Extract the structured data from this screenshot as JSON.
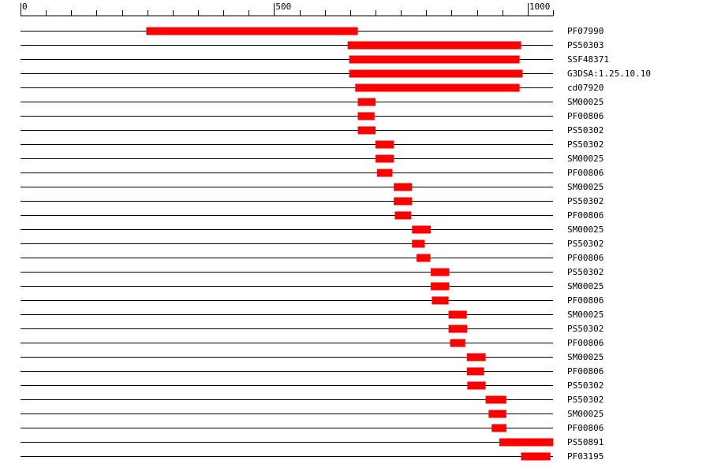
{
  "chart_data": {
    "type": "bar",
    "axis": {
      "range": [
        0,
        1050
      ],
      "minor_tick_step": 50,
      "labels": [
        {
          "value": 0,
          "text": "0"
        },
        {
          "value": 500,
          "text": "500"
        },
        {
          "value": 1000,
          "text": "1000"
        }
      ]
    },
    "bar_color": "#ff0000",
    "rows": [
      {
        "label": "PF07990",
        "start": 248,
        "end": 665
      },
      {
        "label": "PS50303",
        "start": 645,
        "end": 987
      },
      {
        "label": "SSF48371",
        "start": 648,
        "end": 984
      },
      {
        "label": "G3DSA:1.25.10.10",
        "start": 648,
        "end": 990
      },
      {
        "label": "cd07920",
        "start": 660,
        "end": 984
      },
      {
        "label": "SM00025",
        "start": 665,
        "end": 700
      },
      {
        "label": "PF00806",
        "start": 665,
        "end": 698
      },
      {
        "label": "PS50302",
        "start": 665,
        "end": 700
      },
      {
        "label": "PS50302",
        "start": 700,
        "end": 736
      },
      {
        "label": "SM00025",
        "start": 700,
        "end": 736
      },
      {
        "label": "PF00806",
        "start": 703,
        "end": 733
      },
      {
        "label": "SM00025",
        "start": 736,
        "end": 772
      },
      {
        "label": "PS50302",
        "start": 736,
        "end": 772
      },
      {
        "label": "PF00806",
        "start": 738,
        "end": 770
      },
      {
        "label": "SM00025",
        "start": 772,
        "end": 809
      },
      {
        "label": "PS50302",
        "start": 772,
        "end": 797
      },
      {
        "label": "PF00806",
        "start": 781,
        "end": 808
      },
      {
        "label": "PS50302",
        "start": 809,
        "end": 845
      },
      {
        "label": "SM00025",
        "start": 809,
        "end": 845
      },
      {
        "label": "PF00806",
        "start": 811,
        "end": 844
      },
      {
        "label": "SM00025",
        "start": 844,
        "end": 880
      },
      {
        "label": "PS50302",
        "start": 844,
        "end": 881
      },
      {
        "label": "PF00806",
        "start": 847,
        "end": 877
      },
      {
        "label": "SM00025",
        "start": 880,
        "end": 917
      },
      {
        "label": "PF00806",
        "start": 880,
        "end": 914
      },
      {
        "label": "PS50302",
        "start": 881,
        "end": 917
      },
      {
        "label": "PS50302",
        "start": 917,
        "end": 958
      },
      {
        "label": "SM00025",
        "start": 923,
        "end": 958
      },
      {
        "label": "PF00806",
        "start": 929,
        "end": 958
      },
      {
        "label": "PS50891",
        "start": 944,
        "end": 1050
      },
      {
        "label": "PF03195",
        "start": 987,
        "end": 1045
      }
    ]
  }
}
